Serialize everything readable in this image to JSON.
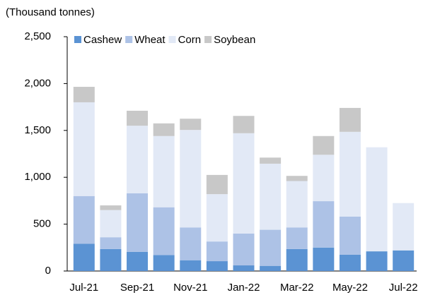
{
  "chart_data": {
    "type": "stacked_bar",
    "y_label": "(Thousand tonnes)",
    "categories": [
      "Jul-21",
      null,
      "Sep-21",
      null,
      "Nov-21",
      null,
      "Jan-22",
      null,
      "Mar-22",
      null,
      "May-22",
      null,
      "Jul-22"
    ],
    "series": [
      {
        "name": "Cashew",
        "color": "#5b93d3",
        "values": [
          290,
          235,
          205,
          170,
          115,
          105,
          60,
          55,
          235,
          250,
          175,
          210,
          220
        ]
      },
      {
        "name": "Wheat",
        "color": "#adc2e6",
        "values": [
          510,
          125,
          625,
          510,
          350,
          210,
          340,
          385,
          230,
          495,
          405,
          0,
          0
        ]
      },
      {
        "name": "Corn",
        "color": "#e2e9f6",
        "values": [
          1000,
          290,
          720,
          760,
          1040,
          505,
          1070,
          705,
          495,
          495,
          905,
          1110,
          505
        ]
      },
      {
        "name": "Soybean",
        "color": "#c8c8c8",
        "values": [
          165,
          50,
          160,
          135,
          120,
          205,
          185,
          65,
          55,
          200,
          255,
          0,
          0
        ]
      }
    ],
    "ylim": [
      0,
      2500
    ],
    "yticks": [
      0,
      500,
      {
        "value": 1000,
        "label": "1,000"
      },
      {
        "value": 1500,
        "label": "1,500"
      },
      {
        "value": 2000,
        "label": "2,000"
      },
      {
        "value": 2500,
        "label": "2,500"
      }
    ],
    "legend": "top"
  }
}
